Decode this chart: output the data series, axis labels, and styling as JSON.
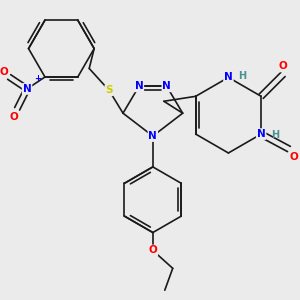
{
  "background_color": "#ebebeb",
  "bond_color": "#1a1a1a",
  "atom_colors": {
    "N": "#0000ff",
    "O": "#ff0000",
    "S": "#cccc00",
    "H": "#4a9090"
  },
  "figsize": [
    3.0,
    3.0
  ],
  "dpi": 100
}
